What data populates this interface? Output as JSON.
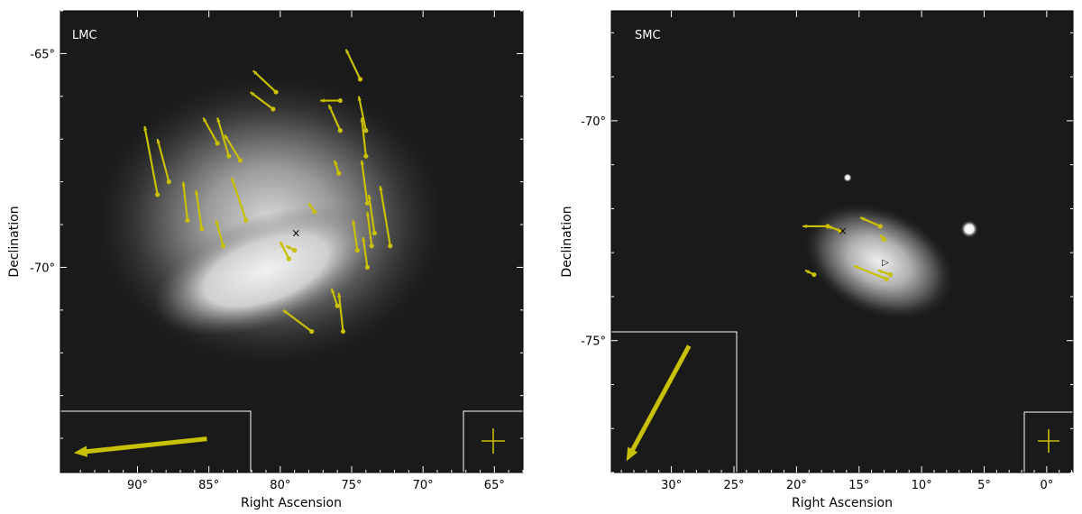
{
  "panels": [
    {
      "id": "lmc",
      "label": "LMC",
      "xlabel": "Right Ascension",
      "ylabel": "Declination",
      "xticks": [
        "90°",
        "85°",
        "80°",
        "75°",
        "70°",
        "65°"
      ],
      "yticks": [
        "-65°",
        "-70°"
      ],
      "ra_range": [
        95.4,
        63.0
      ],
      "dec_range": [
        -64.0,
        -74.8
      ],
      "xtick_values": [
        90,
        85,
        80,
        75,
        70,
        65
      ],
      "ytick_values": [
        -65,
        -70
      ],
      "center_marker": {
        "ra": 78.9,
        "dec": -69.2,
        "symbol": "×"
      },
      "arrow_color": "#c8c000",
      "vectors": [
        {
          "ra": 88.6,
          "dec": -68.3,
          "dra": 0.9,
          "ddec": 1.6
        },
        {
          "ra": 87.8,
          "dec": -68.0,
          "dra": 0.8,
          "ddec": 1.0
        },
        {
          "ra": 86.5,
          "dec": -68.9,
          "dra": 0.3,
          "ddec": 0.9
        },
        {
          "ra": 85.5,
          "dec": -69.1,
          "dra": 0.4,
          "ddec": 0.9
        },
        {
          "ra": 84.4,
          "dec": -67.1,
          "dra": 1.0,
          "ddec": 0.6
        },
        {
          "ra": 83.6,
          "dec": -67.4,
          "dra": 0.8,
          "ddec": 0.9
        },
        {
          "ra": 82.8,
          "dec": -67.5,
          "dra": 1.1,
          "ddec": 0.6
        },
        {
          "ra": 82.4,
          "dec": -68.9,
          "dra": 1.0,
          "ddec": 1.0
        },
        {
          "ra": 84.0,
          "dec": -69.5,
          "dra": 0.5,
          "ddec": 0.6
        },
        {
          "ra": 80.3,
          "dec": -65.9,
          "dra": 1.6,
          "ddec": 0.5
        },
        {
          "ra": 80.5,
          "dec": -66.3,
          "dra": 1.6,
          "ddec": 0.4
        },
        {
          "ra": 75.8,
          "dec": -66.1,
          "dra": 1.4,
          "ddec": 0.0
        },
        {
          "ra": 74.4,
          "dec": -65.6,
          "dra": 1.0,
          "ddec": 0.7
        },
        {
          "ra": 75.8,
          "dec": -66.8,
          "dra": 0.8,
          "ddec": 0.6
        },
        {
          "ra": 74.0,
          "dec": -66.8,
          "dra": 0.5,
          "ddec": 0.8
        },
        {
          "ra": 74.0,
          "dec": -67.4,
          "dra": 0.3,
          "ddec": 0.9
        },
        {
          "ra": 75.9,
          "dec": -67.8,
          "dra": 0.3,
          "ddec": 0.3
        },
        {
          "ra": 73.9,
          "dec": -68.5,
          "dra": 0.4,
          "ddec": 1.0
        },
        {
          "ra": 73.4,
          "dec": -69.2,
          "dra": 0.4,
          "ddec": 0.9
        },
        {
          "ra": 73.6,
          "dec": -69.5,
          "dra": 0.3,
          "ddec": 0.8
        },
        {
          "ra": 72.3,
          "dec": -69.5,
          "dra": 0.7,
          "ddec": 1.4
        },
        {
          "ra": 74.6,
          "dec": -69.6,
          "dra": 0.3,
          "ddec": 0.7
        },
        {
          "ra": 73.9,
          "dec": -70.0,
          "dra": 0.3,
          "ddec": 0.7
        },
        {
          "ra": 76.0,
          "dec": -70.9,
          "dra": 0.4,
          "ddec": 0.4
        },
        {
          "ra": 75.6,
          "dec": -71.5,
          "dra": 0.3,
          "ddec": 0.9
        },
        {
          "ra": 77.8,
          "dec": -71.5,
          "dra": 2.0,
          "ddec": 0.5
        },
        {
          "ra": 77.6,
          "dec": -68.7,
          "dra": 0.4,
          "ddec": 0.2
        },
        {
          "ra": 79.4,
          "dec": -69.8,
          "dra": 0.6,
          "ddec": 0.4
        },
        {
          "ra": 79.0,
          "dec": -69.6,
          "dra": 0.6,
          "ddec": 0.1
        }
      ],
      "reference_arrow": {
        "from": [
          0.77,
          0.45
        ],
        "to": [
          0.07,
          0.68
        ]
      }
    },
    {
      "id": "smc",
      "label": "SMC",
      "xlabel": "Right Ascension",
      "ylabel": "Declination",
      "xticks": [
        "30°",
        "25°",
        "20°",
        "15°",
        "10°",
        "5°",
        "0°"
      ],
      "yticks": [
        "-70°",
        "-75°"
      ],
      "ra_range": [
        34.8,
        -2.1
      ],
      "dec_range": [
        -67.5,
        -78.0
      ],
      "xtick_values": [
        30,
        25,
        20,
        15,
        10,
        5,
        0
      ],
      "ytick_values": [
        -70,
        -75
      ],
      "center_marker": {
        "ra": 16.3,
        "dec": -72.5,
        "symbol": "×"
      },
      "second_marker": {
        "ra": 12.9,
        "dec": -73.2,
        "symbol": "▷"
      },
      "arrow_color": "#c8c000",
      "vectors": [
        {
          "ra": 18.6,
          "dec": -73.5,
          "dra": 0.7,
          "ddec": 0.1
        },
        {
          "ra": 17.5,
          "dec": -72.4,
          "dra": 2.0,
          "ddec": 0.0
        },
        {
          "ra": 16.5,
          "dec": -72.5,
          "dra": 1.0,
          "ddec": 0.1
        },
        {
          "ra": 13.3,
          "dec": -72.4,
          "dra": 1.6,
          "ddec": 0.2
        },
        {
          "ra": 12.8,
          "dec": -73.6,
          "dra": 2.6,
          "ddec": 0.3
        },
        {
          "ra": 12.5,
          "dec": -73.5,
          "dra": 1.0,
          "ddec": 0.1
        },
        {
          "ra": 13.0,
          "dec": -72.7,
          "dra": 0.3,
          "ddec": 0.1
        }
      ],
      "reference_arrow": {
        "from": [
          0.62,
          0.1
        ],
        "to": [
          0.12,
          0.92
        ]
      }
    }
  ],
  "colors": {
    "sky_background": "#1a1a1a",
    "arrow": "#c8c000",
    "frame": "#ffffff"
  }
}
